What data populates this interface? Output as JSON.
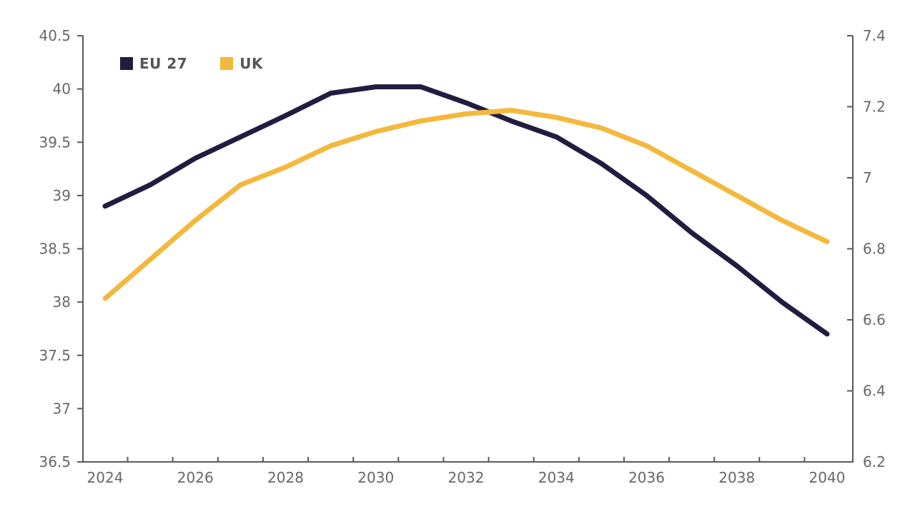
{
  "figure": {
    "background": "#ffffff",
    "title": ""
  },
  "chart_data": {
    "type": "line",
    "x": [
      2024,
      2025,
      2026,
      2027,
      2028,
      2029,
      2030,
      2031,
      2032,
      2033,
      2034,
      2035,
      2036,
      2037,
      2038,
      2039,
      2040
    ],
    "series": [
      {
        "name": "EU 27",
        "axis": "left",
        "color": "#221c41",
        "values": [
          38.9,
          39.1,
          39.35,
          39.55,
          39.75,
          39.96,
          40.02,
          40.02,
          39.87,
          39.7,
          39.55,
          39.3,
          39.0,
          38.65,
          38.34,
          38.0,
          37.7
        ]
      },
      {
        "name": "UK",
        "axis": "right",
        "color": "#f3b83d",
        "values": [
          6.66,
          6.77,
          6.88,
          6.98,
          7.03,
          7.09,
          7.13,
          7.16,
          7.18,
          7.19,
          7.17,
          7.14,
          7.09,
          7.02,
          6.95,
          6.88,
          6.82
        ]
      }
    ],
    "left_axis": {
      "min": 36.5,
      "max": 40.5,
      "tick_values": [
        40.5,
        40,
        39.5,
        39,
        38.5,
        38,
        37.5,
        37,
        36.5
      ],
      "tick_labels": [
        "40.5",
        "40",
        "39.5",
        "39",
        "38.5",
        "38",
        "37.5",
        "37",
        "36.5"
      ]
    },
    "right_axis": {
      "min": 6.2,
      "max": 7.4,
      "tick_values": [
        7.4,
        7.2,
        7.0,
        6.8,
        6.6,
        6.4,
        6.2
      ],
      "tick_labels": [
        "7.4",
        "7.2",
        "7",
        "6.8",
        "6.6",
        "6.4",
        "6.2"
      ]
    },
    "x_axis": {
      "tick_label_years": [
        2024,
        2026,
        2028,
        2030,
        2032,
        2034,
        2036,
        2038,
        2040
      ],
      "tick_labels": [
        "2024",
        "2026",
        "2028",
        "2030",
        "2032",
        "2034",
        "2036",
        "2038",
        "2040"
      ],
      "minor_ticks": "midpoints-between-years"
    },
    "grid": false,
    "legend_position": "top-left-inside",
    "colors": {
      "axis": "#595a5e",
      "tick_text": "#66676b",
      "legend_text": "#55565a"
    }
  }
}
